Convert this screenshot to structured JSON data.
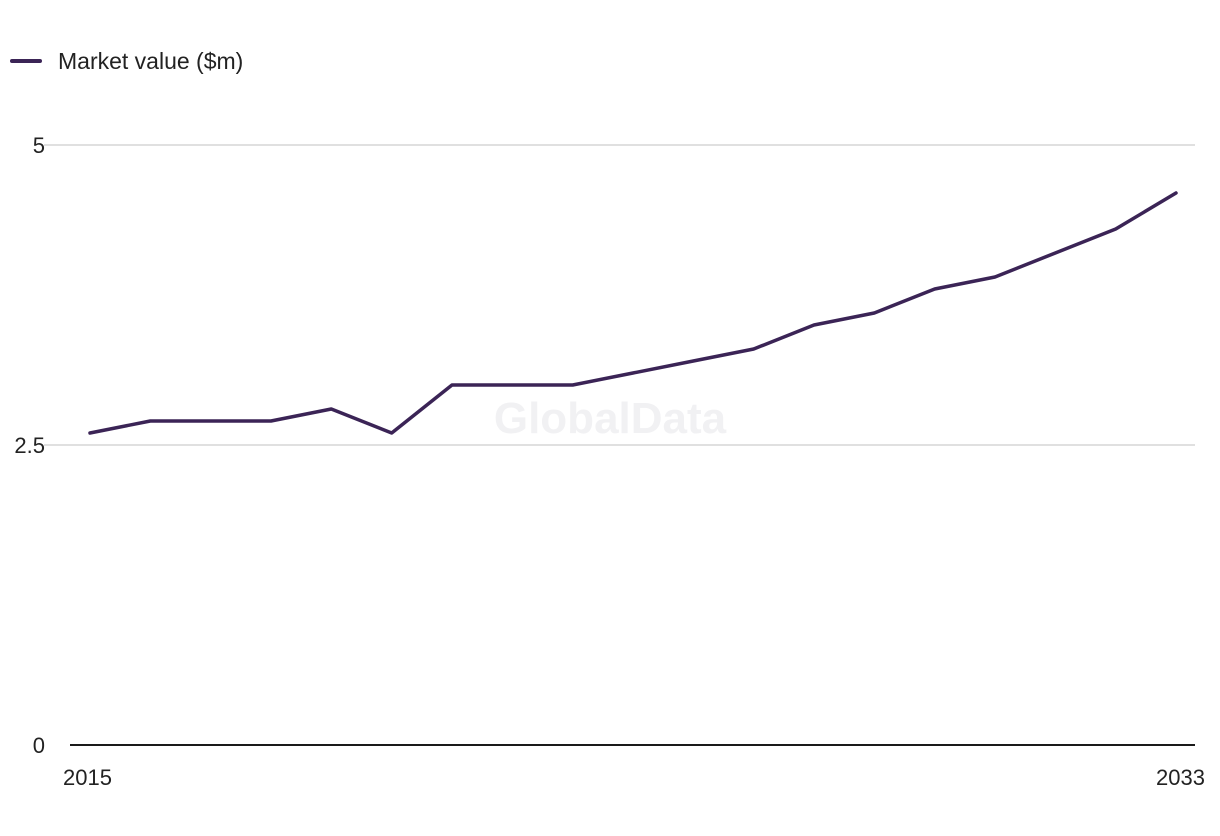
{
  "watermark": "GlobalData",
  "colors": {
    "series": "#3b2456",
    "grid": "#d6d6d6",
    "axis": "#1a1a1a"
  },
  "chart_data": {
    "type": "line",
    "legend_position": "top-left",
    "grid": true,
    "ylim": [
      0,
      5
    ],
    "yticks": [
      0,
      2.5,
      5
    ],
    "ytick_labels": [
      "0",
      "2.5",
      "5"
    ],
    "xlim": [
      2015,
      2033
    ],
    "xtick_labels": [
      "2015",
      "2033"
    ],
    "x": [
      2015,
      2016,
      2017,
      2018,
      2019,
      2020,
      2021,
      2022,
      2023,
      2024,
      2025,
      2026,
      2027,
      2028,
      2029,
      2030,
      2031,
      2032,
      2033
    ],
    "series": [
      {
        "name": "Market value ($m)",
        "values": [
          2.6,
          2.7,
          2.7,
          2.7,
          2.8,
          2.6,
          3.0,
          3.0,
          3.0,
          3.1,
          3.2,
          3.3,
          3.5,
          3.6,
          3.8,
          3.9,
          4.1,
          4.3,
          4.6
        ]
      }
    ]
  }
}
